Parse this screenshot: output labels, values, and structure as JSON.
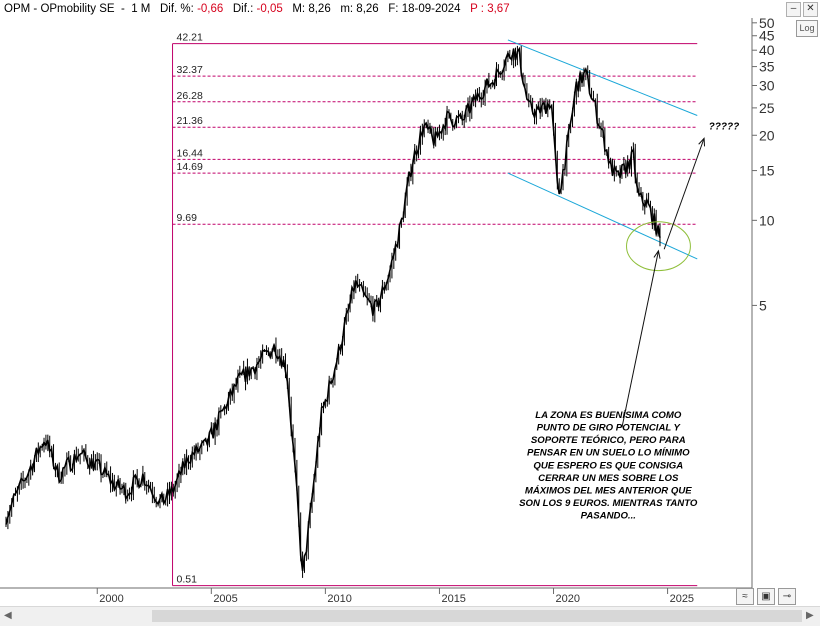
{
  "header": {
    "symbol": "OPM",
    "name": "OPmobility SE",
    "period": "1 M",
    "dif_pct_label": "Dif. %:",
    "dif_pct": "-0,66",
    "dif_label": "Dif.:",
    "dif": "-0,05",
    "M_label": "M:",
    "M": "8,26",
    "m_label": "m:",
    "m": "8,26",
    "F_label": "F:",
    "date": "18-09-2024",
    "P_label": "P :",
    "P": "3,67"
  },
  "controls": {
    "log_button": "Log",
    "minimize": "–",
    "close": "✕"
  },
  "chart_data": {
    "type": "candlestick",
    "scale": "log",
    "ylim": [
      0.5,
      52
    ],
    "xlim": [
      1996.0,
      2028.7
    ],
    "y_ticks": [
      5,
      10,
      15,
      20,
      25,
      30,
      35,
      40,
      45,
      50
    ],
    "x_ticks": [
      "2000",
      "2005",
      "2010",
      "2015",
      "2020",
      "2025"
    ],
    "x_tick_years": [
      2000,
      2005,
      2010,
      2015,
      2020,
      2025
    ],
    "price_path": [
      [
        1996.0,
        0.9
      ],
      [
        1997.0,
        1.3
      ],
      [
        1997.7,
        1.7
      ],
      [
        1998.3,
        1.25
      ],
      [
        1999.2,
        1.5
      ],
      [
        2000.0,
        1.35
      ],
      [
        2000.8,
        1.15
      ],
      [
        2001.3,
        1.1
      ],
      [
        2002.0,
        1.25
      ],
      [
        2002.8,
        1.0
      ],
      [
        2003.3,
        1.1
      ],
      [
        2004.0,
        1.45
      ],
      [
        2004.8,
        1.6
      ],
      [
        2005.5,
        2.1
      ],
      [
        2006.2,
        2.7
      ],
      [
        2007.0,
        3.1
      ],
      [
        2007.8,
        3.6
      ],
      [
        2008.3,
        3.0
      ],
      [
        2008.7,
        1.2
      ],
      [
        2009.0,
        0.55
      ],
      [
        2009.3,
        0.85
      ],
      [
        2009.8,
        2.0
      ],
      [
        2010.5,
        3.2
      ],
      [
        2011.3,
        6.0
      ],
      [
        2011.8,
        5.2
      ],
      [
        2012.2,
        4.8
      ],
      [
        2012.8,
        6.5
      ],
      [
        2013.3,
        9.5
      ],
      [
        2013.8,
        16.0
      ],
      [
        2014.3,
        21.5
      ],
      [
        2014.8,
        19.0
      ],
      [
        2015.3,
        23.0
      ],
      [
        2016.0,
        22.5
      ],
      [
        2016.8,
        28.5
      ],
      [
        2017.3,
        31.0
      ],
      [
        2017.8,
        36.0
      ],
      [
        2018.2,
        40.0
      ],
      [
        2018.5,
        38.0
      ],
      [
        2018.9,
        25.0
      ],
      [
        2019.3,
        24.0
      ],
      [
        2019.9,
        26.5
      ],
      [
        2020.2,
        12.0
      ],
      [
        2020.6,
        18.0
      ],
      [
        2021.0,
        30.0
      ],
      [
        2021.4,
        33.0
      ],
      [
        2021.8,
        25.5
      ],
      [
        2022.2,
        19.5
      ],
      [
        2022.5,
        15.5
      ],
      [
        2022.8,
        14.0
      ],
      [
        2023.2,
        15.5
      ],
      [
        2023.5,
        16.8
      ],
      [
        2023.7,
        12.0
      ],
      [
        2024.1,
        11.5
      ],
      [
        2024.5,
        9.5
      ],
      [
        2024.71,
        8.26
      ]
    ],
    "fib_levels": [
      {
        "label": "42.21",
        "value": 42.21
      },
      {
        "label": "32.37",
        "value": 32.37
      },
      {
        "label": "26.28",
        "value": 26.28
      },
      {
        "label": "21.36",
        "value": 21.36
      },
      {
        "label": "16.44",
        "value": 16.44
      },
      {
        "label": "14.69",
        "value": 14.69
      },
      {
        "label": "9.69",
        "value": 9.69
      },
      {
        "label": "0.51",
        "value": 0.51
      }
    ],
    "fib_box": {
      "x_start": 2003.3,
      "x_end": 2026.3,
      "top": 42.21,
      "bottom": 0.51
    },
    "channel": {
      "upper": {
        "p1": [
          2018.0,
          43.5
        ],
        "p2": [
          2026.3,
          23.5
        ]
      },
      "lower": {
        "p1": [
          2018.0,
          14.7
        ],
        "p2": [
          2026.3,
          7.3
        ]
      }
    },
    "highlight_circle": {
      "center": [
        2024.6,
        8.1
      ],
      "rx_years": 1.4,
      "ry_factor": 1.22
    },
    "annotations": [
      {
        "text": "?????",
        "at": [
          2026.8,
          21.0
        ]
      },
      {
        "lines": [
          "LA ZONA ES BUENÍSIMA COMO",
          "PUNTO DE GIRO POTENCIAL Y",
          "SOPORTE TEÓRICO, PERO PARA",
          "PENSAR EN UN SUELO LO MÍNIMO",
          "QUE ESPERO ES QUE CONSIGA",
          "CERRAR UN MES SOBRE LOS",
          "MÁXIMOS DEL MES ANTERIOR QUE",
          "SON LOS 9 EUROS. MIENTRAS TANTO",
          "PASANDO..."
        ],
        "at": [
          2022.4,
          2.0
        ]
      }
    ],
    "arrows": [
      {
        "from": [
          2024.85,
          7.9
        ],
        "to": [
          2026.6,
          19.5
        ]
      },
      {
        "from": [
          2023.0,
          1.85
        ],
        "to": [
          2024.6,
          7.8
        ]
      }
    ],
    "colors": {
      "price": "#000000",
      "fib": "#c0006a",
      "channel": "#1ba7d8",
      "circle": "#8fbf3a",
      "axis": "#6b6b6b",
      "negative": "#d6001c"
    }
  }
}
